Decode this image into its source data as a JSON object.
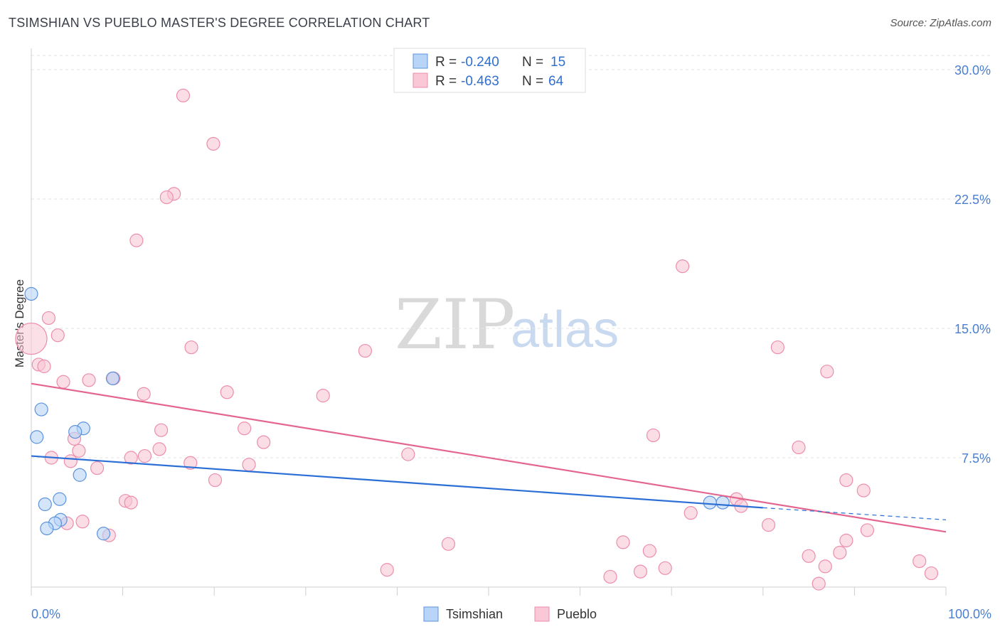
{
  "header": {
    "title": "TSIMSHIAN VS PUEBLO MASTER'S DEGREE CORRELATION CHART",
    "source": "Source: ZipAtlas.com"
  },
  "watermark": {
    "zip": "ZIP",
    "atlas": "atlas"
  },
  "legend": {
    "rows": [
      {
        "r_label": "R = ",
        "r_value": "-0.240",
        "n_label": "N = ",
        "n_value": "15"
      },
      {
        "r_label": "R = ",
        "r_value": "-0.463",
        "n_label": "N = ",
        "n_value": "64"
      }
    ]
  },
  "colors": {
    "tsimshian_fill": "#b8d4f7",
    "tsimshian_stroke": "#5b93dc",
    "tsimshian_line": "#2b6fd6",
    "pueblo_fill": "#f9c7d6",
    "pueblo_stroke": "#ec8eac",
    "pueblo_line": "#e4668f",
    "grid": "#e3e3e3",
    "axis_text": "#4a7fd0"
  },
  "chart_data": {
    "type": "scatter",
    "title": "TSIMSHIAN VS PUEBLO MASTER'S DEGREE CORRELATION CHART",
    "xlabel": "",
    "ylabel": "Master's Degree",
    "xlim": [
      0,
      100
    ],
    "ylim": [
      0,
      31
    ],
    "x_tick_labels": [
      "0.0%",
      "100.0%"
    ],
    "y_ticks": [
      {
        "value": 7.5,
        "label": "7.5%"
      },
      {
        "value": 15.0,
        "label": "15.0%"
      },
      {
        "value": 22.5,
        "label": "22.5%"
      },
      {
        "value": 30.0,
        "label": "30.0%"
      }
    ],
    "series": [
      {
        "name": "Tsimshian",
        "r": -0.24,
        "n": 15,
        "points": [
          {
            "x": 0.0,
            "y": 17.0
          },
          {
            "x": 1.1,
            "y": 10.3
          },
          {
            "x": 0.6,
            "y": 8.7
          },
          {
            "x": 5.7,
            "y": 9.2
          },
          {
            "x": 4.8,
            "y": 9.0
          },
          {
            "x": 8.9,
            "y": 12.1
          },
          {
            "x": 5.3,
            "y": 6.5
          },
          {
            "x": 3.1,
            "y": 5.1
          },
          {
            "x": 1.5,
            "y": 4.8
          },
          {
            "x": 3.2,
            "y": 3.9
          },
          {
            "x": 2.6,
            "y": 3.7
          },
          {
            "x": 1.7,
            "y": 3.4
          },
          {
            "x": 7.9,
            "y": 3.1
          },
          {
            "x": 74.2,
            "y": 4.9
          },
          {
            "x": 75.6,
            "y": 4.9
          }
        ],
        "trend": {
          "x0": 0,
          "y0": 7.6,
          "x1": 80,
          "y1": 4.6
        },
        "trend_dashed": {
          "x0": 80,
          "y0": 4.6,
          "x1": 100,
          "y1": 3.9
        }
      },
      {
        "name": "Pueblo",
        "r": -0.463,
        "n": 64,
        "points": [
          {
            "x": 0.0,
            "y": 14.4,
            "big": true
          },
          {
            "x": 16.6,
            "y": 28.5
          },
          {
            "x": 19.9,
            "y": 25.7
          },
          {
            "x": 15.6,
            "y": 22.8
          },
          {
            "x": 14.8,
            "y": 22.6
          },
          {
            "x": 11.5,
            "y": 20.1
          },
          {
            "x": 71.2,
            "y": 18.6
          },
          {
            "x": 1.9,
            "y": 15.6
          },
          {
            "x": 2.9,
            "y": 14.6
          },
          {
            "x": 17.5,
            "y": 13.9
          },
          {
            "x": 36.5,
            "y": 13.7
          },
          {
            "x": 81.6,
            "y": 13.9
          },
          {
            "x": 0.8,
            "y": 12.9
          },
          {
            "x": 1.4,
            "y": 12.8
          },
          {
            "x": 87.0,
            "y": 12.5
          },
          {
            "x": 9.0,
            "y": 12.1
          },
          {
            "x": 6.3,
            "y": 12.0
          },
          {
            "x": 3.5,
            "y": 11.9
          },
          {
            "x": 12.3,
            "y": 11.2
          },
          {
            "x": 21.4,
            "y": 11.3
          },
          {
            "x": 31.9,
            "y": 11.1
          },
          {
            "x": 23.3,
            "y": 9.2
          },
          {
            "x": 14.2,
            "y": 9.1
          },
          {
            "x": 68.0,
            "y": 8.8
          },
          {
            "x": 4.7,
            "y": 8.6
          },
          {
            "x": 25.4,
            "y": 8.4
          },
          {
            "x": 14.0,
            "y": 8.0
          },
          {
            "x": 83.9,
            "y": 8.1
          },
          {
            "x": 5.2,
            "y": 7.9
          },
          {
            "x": 41.2,
            "y": 7.7
          },
          {
            "x": 12.4,
            "y": 7.6
          },
          {
            "x": 2.2,
            "y": 7.5
          },
          {
            "x": 10.9,
            "y": 7.5
          },
          {
            "x": 4.3,
            "y": 7.3
          },
          {
            "x": 17.4,
            "y": 7.2
          },
          {
            "x": 23.8,
            "y": 7.1
          },
          {
            "x": 7.2,
            "y": 6.9
          },
          {
            "x": 89.1,
            "y": 6.2
          },
          {
            "x": 20.1,
            "y": 6.2
          },
          {
            "x": 91.0,
            "y": 5.6
          },
          {
            "x": 77.1,
            "y": 5.1
          },
          {
            "x": 10.3,
            "y": 5.0
          },
          {
            "x": 10.9,
            "y": 4.9
          },
          {
            "x": 77.6,
            "y": 4.7
          },
          {
            "x": 72.1,
            "y": 4.3
          },
          {
            "x": 5.6,
            "y": 3.8
          },
          {
            "x": 3.9,
            "y": 3.7
          },
          {
            "x": 80.6,
            "y": 3.6
          },
          {
            "x": 91.4,
            "y": 3.3
          },
          {
            "x": 8.5,
            "y": 3.0
          },
          {
            "x": 45.6,
            "y": 2.5
          },
          {
            "x": 64.7,
            "y": 2.6
          },
          {
            "x": 89.1,
            "y": 2.7
          },
          {
            "x": 67.6,
            "y": 2.1
          },
          {
            "x": 88.4,
            "y": 2.0
          },
          {
            "x": 85.0,
            "y": 1.8
          },
          {
            "x": 97.1,
            "y": 1.5
          },
          {
            "x": 86.8,
            "y": 1.2
          },
          {
            "x": 69.3,
            "y": 1.1
          },
          {
            "x": 38.9,
            "y": 1.0
          },
          {
            "x": 66.6,
            "y": 0.9
          },
          {
            "x": 98.4,
            "y": 0.8
          },
          {
            "x": 63.3,
            "y": 0.6
          },
          {
            "x": 86.1,
            "y": 0.2
          }
        ],
        "trend": {
          "x0": 0,
          "y0": 11.8,
          "x1": 100,
          "y1": 3.2
        }
      }
    ]
  }
}
